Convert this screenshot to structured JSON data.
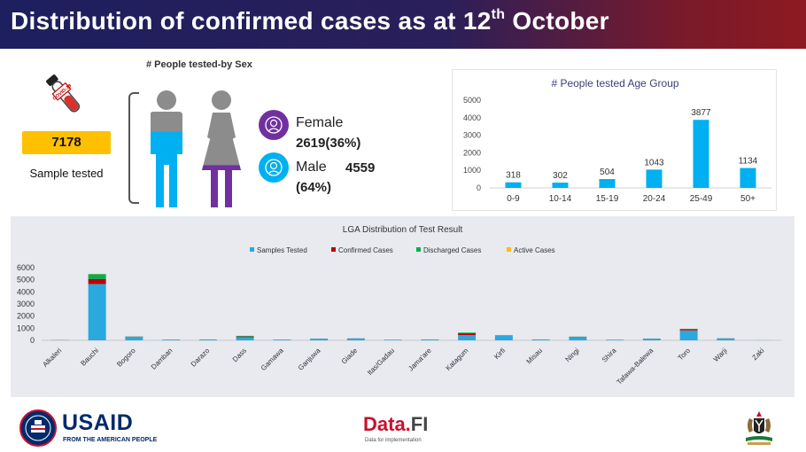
{
  "header": {
    "title_main": "Distribution of confirmed cases as at 12",
    "title_sup": "th",
    "title_end": " October"
  },
  "sex_panel": {
    "title": "# People tested-by Sex",
    "sample_count": "7178",
    "sample_label": "Sample tested",
    "tube_label": "COVID-19",
    "female_label": "Female",
    "female_value": "2619(36%)",
    "male_label": "Male",
    "male_value": "4559",
    "male_pct": "(64%)",
    "female_fill_fraction": 0.36,
    "male_fill_fraction": 0.64,
    "colors": {
      "male": "#00b0f0",
      "female": "#7030a0",
      "grey": "#8c8c8c"
    }
  },
  "chart_data": [
    {
      "type": "bar",
      "title": "# People tested Age Group",
      "categories": [
        "0-9",
        "10-14",
        "15-19",
        "20-24",
        "25-49",
        "50+"
      ],
      "values": [
        318,
        302,
        504,
        1043,
        3877,
        1134
      ],
      "ylim": [
        0,
        5000
      ],
      "yticks": [
        0,
        1000,
        2000,
        3000,
        4000,
        5000
      ],
      "color": "#00b0f0"
    },
    {
      "type": "bar",
      "stacked": true,
      "title": "LGA Distribution of Test Result",
      "categories": [
        "Alkaleri",
        "Bauchi",
        "Bogoro",
        "Damban",
        "Darazo",
        "Dass",
        "Gamawa",
        "Ganjuwa",
        "Giade",
        "Itas/Gadau",
        "Jama'are",
        "Katagum",
        "Kirfi",
        "Misau",
        "Ningi",
        "Shira",
        "Tafawa-Balewa",
        "Toro",
        "Warji",
        "Zaki"
      ],
      "ylim": [
        0,
        6000
      ],
      "yticks": [
        0,
        1000,
        2000,
        3000,
        4000,
        5000,
        6000
      ],
      "series": [
        {
          "name": "Samples Tested",
          "color": "#29a9e0",
          "values": [
            20,
            4650,
            290,
            60,
            70,
            260,
            60,
            130,
            150,
            50,
            70,
            430,
            380,
            70,
            280,
            50,
            130,
            820,
            150,
            10
          ]
        },
        {
          "name": "Confirmed Cases",
          "color": "#c00000",
          "values": [
            5,
            420,
            15,
            5,
            3,
            60,
            3,
            8,
            8,
            3,
            3,
            150,
            20,
            3,
            15,
            3,
            10,
            90,
            10,
            0
          ]
        },
        {
          "name": "Discharged Cases",
          "color": "#00b050",
          "values": [
            5,
            400,
            12,
            3,
            2,
            50,
            2,
            7,
            7,
            2,
            2,
            60,
            18,
            2,
            12,
            2,
            8,
            40,
            8,
            0
          ]
        },
        {
          "name": "Active Cases",
          "color": "#ffc000",
          "values": [
            2,
            20,
            2,
            1,
            1,
            5,
            1,
            1,
            1,
            1,
            1,
            5,
            2,
            1,
            2,
            1,
            1,
            5,
            1,
            0
          ]
        }
      ]
    }
  ],
  "footer": {
    "usaid": "USAID",
    "usaid_sub": "FROM THE AMERICAN PEOPLE",
    "datafi": "Data.",
    "datafi_fi": "FI",
    "datafi_sub": "Data for implementation"
  }
}
